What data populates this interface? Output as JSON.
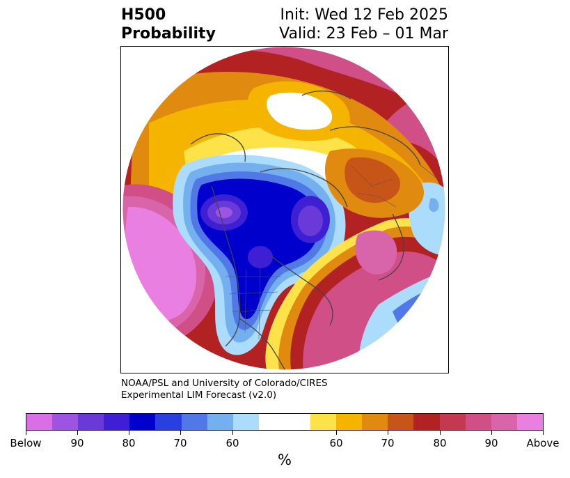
{
  "title": {
    "left_line1": "H500",
    "left_line2": "Probability",
    "right_line1": "Init: Wed 12 Feb 2025",
    "right_line2": "Valid: 23 Feb – 01 Mar"
  },
  "credit": {
    "line1": "NOAA/PSL and University of Colorado/CIRES",
    "line2": "Experimental LIM Forecast (v2.0)"
  },
  "colorbar": {
    "unit": "%",
    "tick_labels": [
      "Below",
      "90",
      "80",
      "70",
      "60",
      "60",
      "70",
      "80",
      "90",
      "Above"
    ],
    "colors": [
      "#d96fe6",
      "#9b55e0",
      "#6a3ad8",
      "#3f1fd4",
      "#0000cc",
      "#2a3fe0",
      "#5078e6",
      "#74b0f0",
      "#acdcfc",
      "#ffffff",
      "#fde24a",
      "#f4b400",
      "#e08a10",
      "#c85518",
      "#b22222",
      "#c43850",
      "#cf4f86",
      "#d864aa",
      "#e97fe0"
    ]
  },
  "map": {
    "projection": "north-polar-stereographic",
    "legend_palette": {
      "below_strong": "#d96fe6",
      "below_mid": "#0000cc",
      "below_weak": "#acdcfc",
      "above_weak": "#fde24a",
      "above_mid": "#e08a10",
      "above_strong": "#b22222",
      "above_extreme": "#cf4f86"
    }
  }
}
